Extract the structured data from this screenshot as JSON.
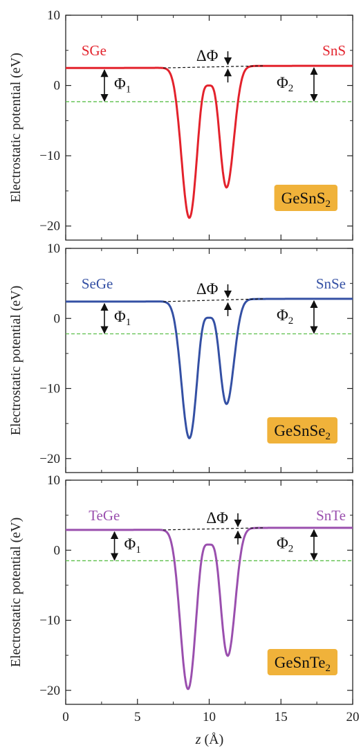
{
  "chart_data": [
    {
      "type": "line",
      "compound_base": "GeSnS",
      "compound_sub": "2",
      "left_label": "SGe",
      "right_label": "SnS",
      "color": "#e3222c",
      "ylabel": "Electrostatic potential (eV)",
      "xlabel_var": "z",
      "xlabel_unit": " (Å)",
      "xlim": [
        0,
        20
      ],
      "ylim": [
        -22,
        10
      ],
      "xticks": [
        "0",
        "5",
        "10",
        "15",
        "20"
      ],
      "yticks": [
        "10",
        "0",
        "−10",
        "−20"
      ],
      "left_level": 2.5,
      "right_level": 2.8,
      "dashed_level": -2.3,
      "dip1": {
        "x": 8.6,
        "y": -19.6
      },
      "local_max": {
        "x": 10.0,
        "y": 0.0
      },
      "dip2": {
        "x": 11.2,
        "y": -15.2
      },
      "delta_label": "ΔΦ",
      "phi1_label": "Φ",
      "phi1_sub": "1",
      "phi2_label": "Φ",
      "phi2_sub": "2"
    },
    {
      "type": "line",
      "compound_base": "GeSnSe",
      "compound_sub": "2",
      "left_label": "SeGe",
      "right_label": "SnSe",
      "color": "#3450a4",
      "ylabel": "Electrostatic potential (eV)",
      "xlabel_var": "z",
      "xlabel_unit": " (Å)",
      "xlim": [
        0,
        20
      ],
      "ylim": [
        -22,
        10
      ],
      "xticks": [
        "0",
        "5",
        "10",
        "15",
        "20"
      ],
      "yticks": [
        "10",
        "0",
        "−10",
        "−20"
      ],
      "left_level": 2.4,
      "right_level": 2.8,
      "dashed_level": -2.2,
      "dip1": {
        "x": 8.6,
        "y": -17.8
      },
      "local_max": {
        "x": 10.0,
        "y": 0.1
      },
      "dip2": {
        "x": 11.2,
        "y": -12.8
      },
      "delta_label": "ΔΦ",
      "phi1_label": "Φ",
      "phi1_sub": "1",
      "phi2_label": "Φ",
      "phi2_sub": "2"
    },
    {
      "type": "line",
      "compound_base": "GeSnTe",
      "compound_sub": "2",
      "left_label": "TeGe",
      "right_label": "SnTe",
      "color": "#9a4fae",
      "ylabel": "Electrostatic potential (eV)",
      "xlabel_var": "z",
      "xlabel_unit": " (Å)",
      "xlim": [
        0,
        20
      ],
      "ylim": [
        -22,
        10
      ],
      "xticks": [
        "0",
        "5",
        "10",
        "15",
        "20"
      ],
      "yticks": [
        "10",
        "0",
        "−10",
        "−20"
      ],
      "left_level": 2.9,
      "right_level": 3.2,
      "dashed_level": -1.5,
      "dip1": {
        "x": 8.5,
        "y": -20.8
      },
      "local_max": {
        "x": 10.0,
        "y": 0.8
      },
      "dip2": {
        "x": 11.3,
        "y": -15.8
      },
      "delta_label": "ΔΦ",
      "phi1_label": "Φ",
      "phi1_sub": "1",
      "phi2_label": "Φ",
      "phi2_sub": "2"
    }
  ],
  "colors": {
    "dashed_green": "#5cbf4a",
    "badge_fill": "#f0b23a",
    "axis": "#222222"
  }
}
